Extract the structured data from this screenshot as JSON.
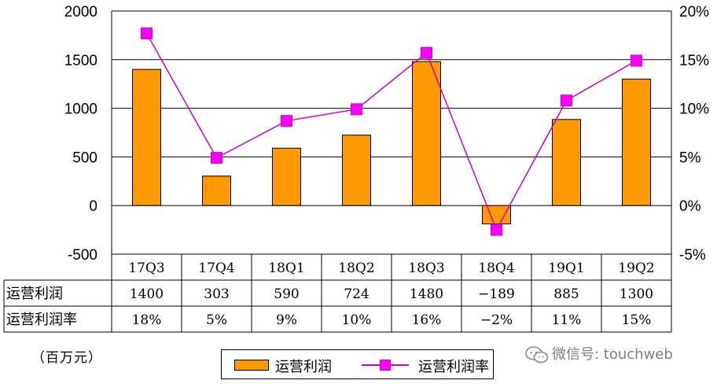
{
  "chart_data": {
    "type": "bar",
    "categories": [
      "17Q3",
      "17Q4",
      "18Q1",
      "18Q2",
      "18Q3",
      "18Q4",
      "19Q1",
      "19Q2"
    ],
    "series": [
      {
        "name": "运营利润",
        "type": "bar",
        "axis": "left",
        "color": "#ff9900",
        "values": [
          1400,
          303,
          590,
          724,
          1480,
          -189,
          885,
          1300
        ]
      },
      {
        "name": "运营利润率",
        "type": "line",
        "axis": "right",
        "color": "#ff00ff",
        "values": [
          17.7,
          4.9,
          8.7,
          9.9,
          15.7,
          -2.5,
          10.8,
          14.9
        ]
      }
    ],
    "ylim": [
      -500,
      2000
    ],
    "y_ticks": [
      "2000",
      "1500",
      "1000",
      "500",
      "0",
      "-500"
    ],
    "y2lim": [
      -5,
      20
    ],
    "y2_ticks": [
      "20%",
      "15%",
      "10%",
      "5%",
      "0%",
      "-5%"
    ],
    "grid": true,
    "legend": "bottom",
    "table": {
      "rows": [
        {
          "label": "运营利润",
          "cells": [
            "1400",
            "303",
            "590",
            "724",
            "1480",
            "-189",
            "885",
            "1300"
          ]
        },
        {
          "label": "运营利润率",
          "cells": [
            "18%",
            "5%",
            "9%",
            "10%",
            "16%",
            "-2%",
            "11%",
            "15%"
          ]
        }
      ]
    },
    "unit_label": "（百万元）"
  },
  "legend": {
    "bar_label": "运营利润",
    "line_label": "运营利润率"
  },
  "watermark": {
    "text": "微信号: touchweb",
    "icon": "wechat-icon"
  }
}
